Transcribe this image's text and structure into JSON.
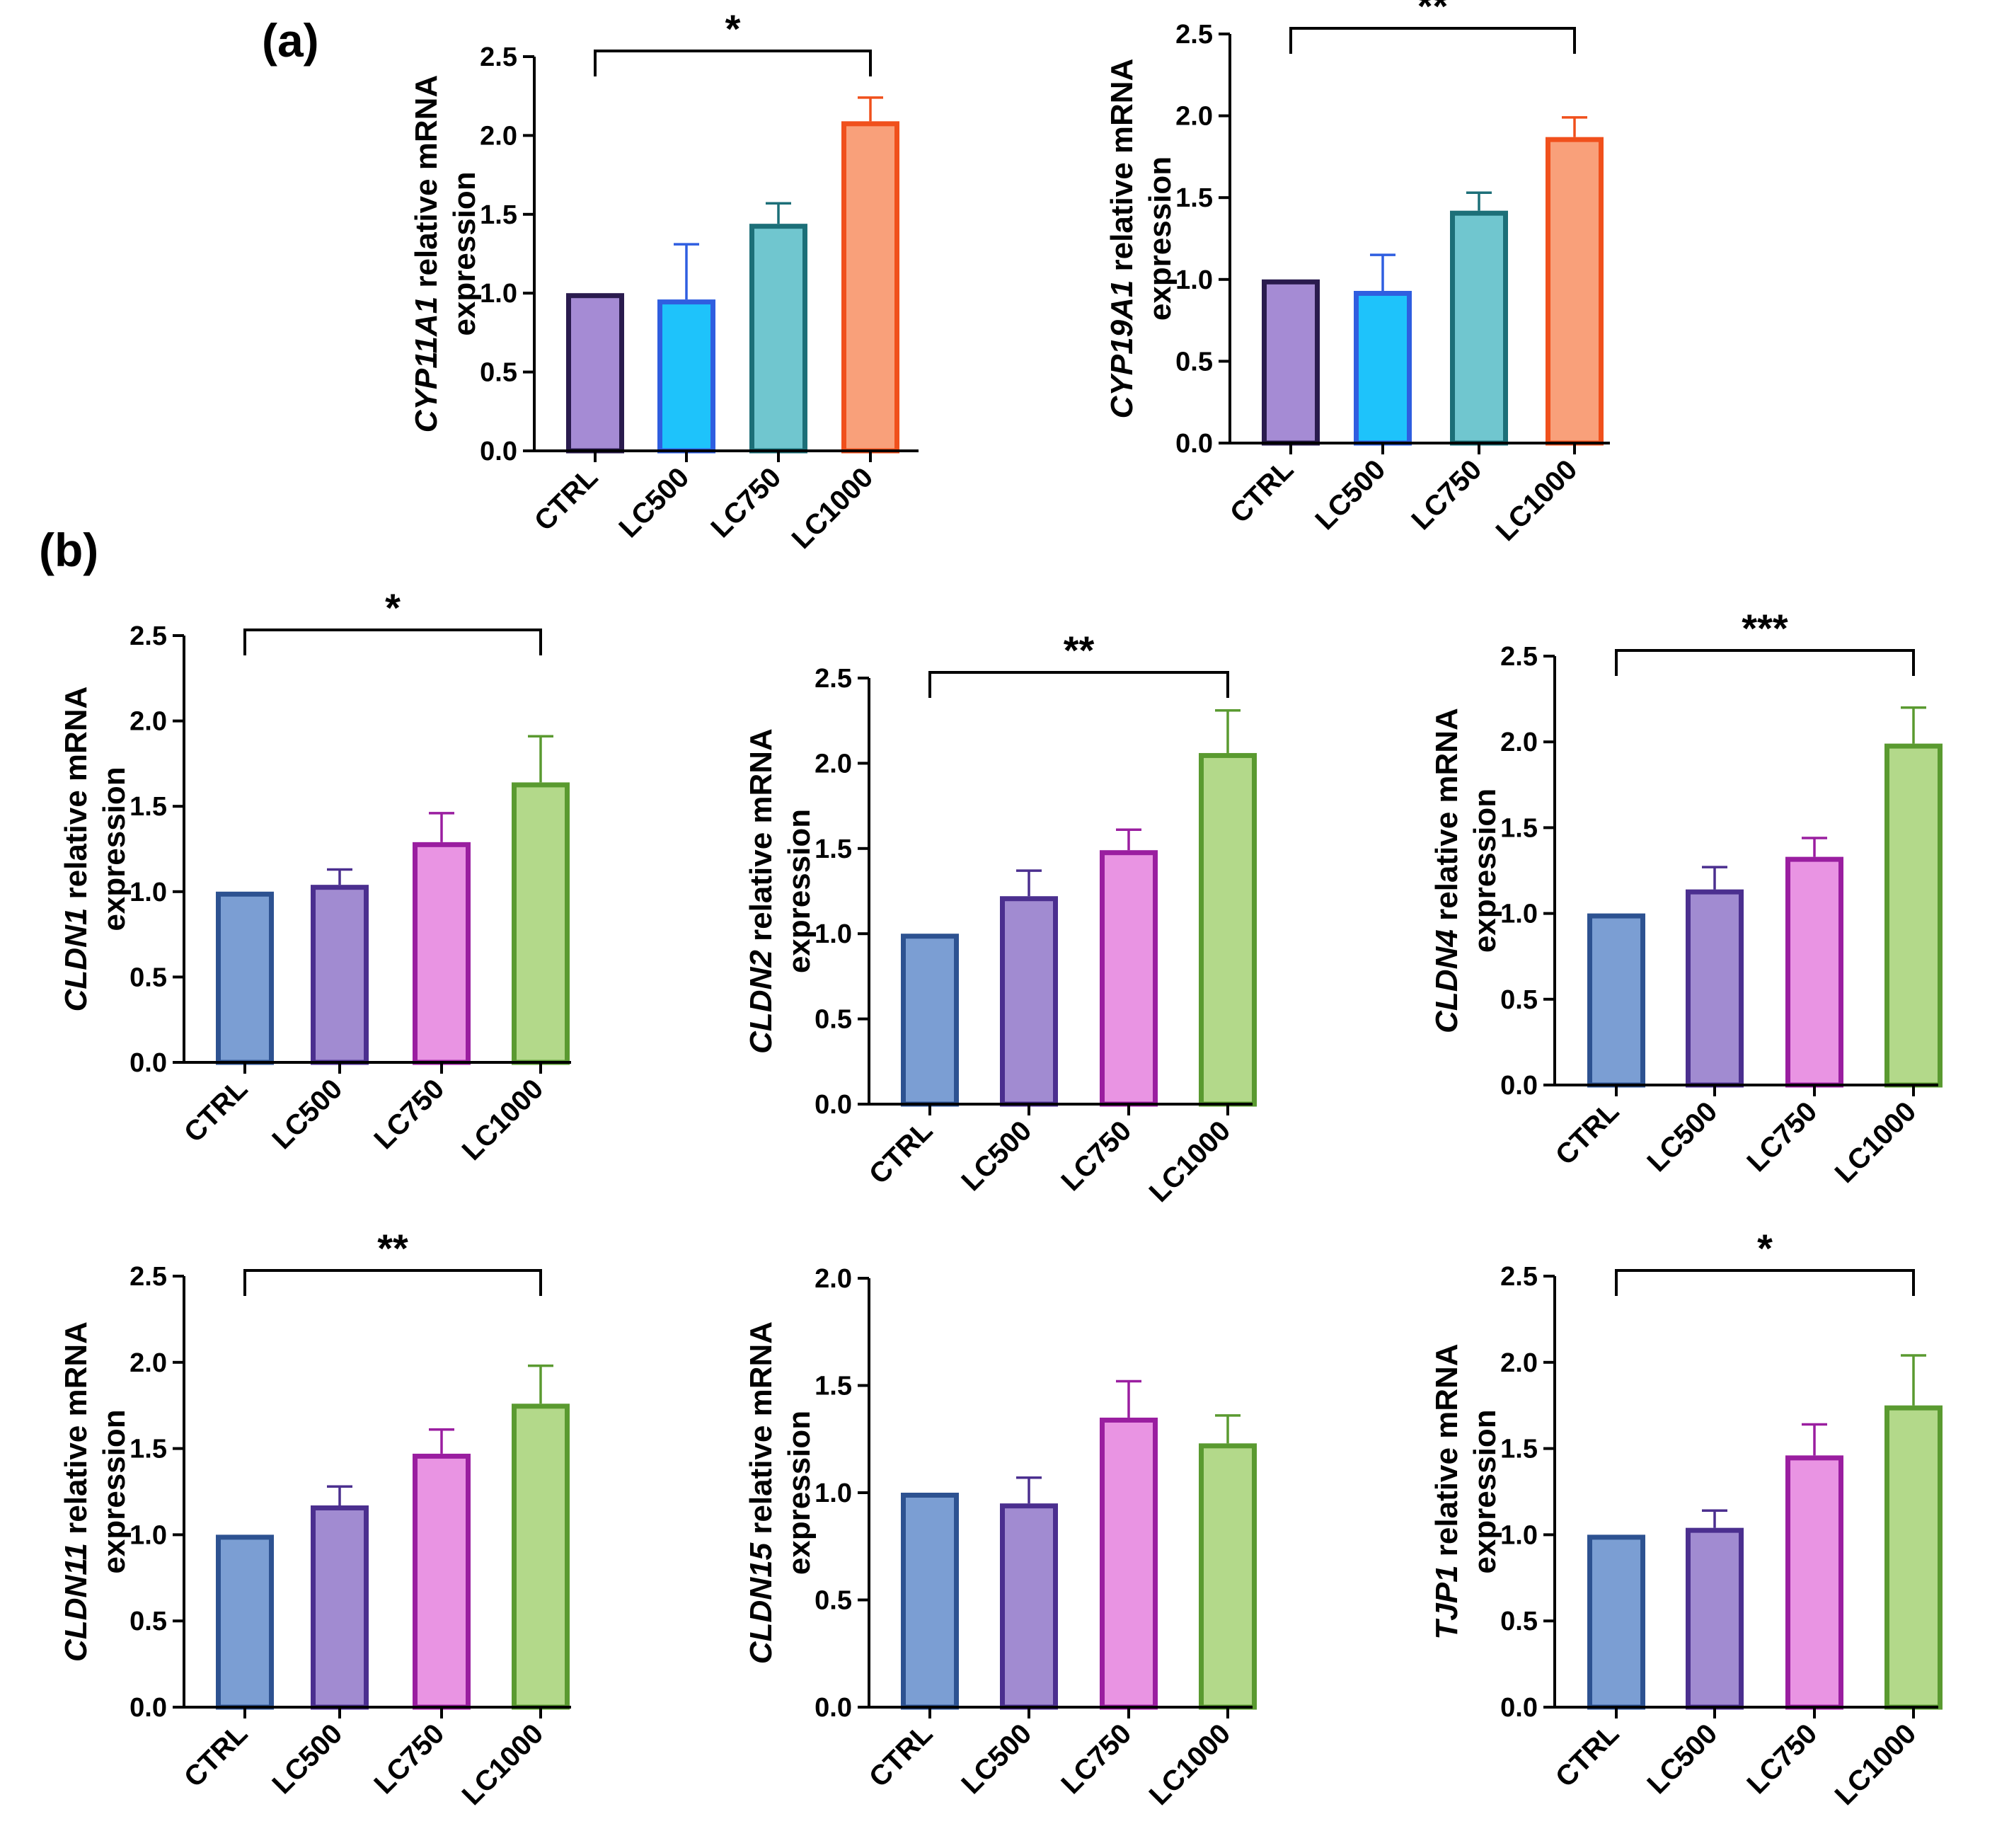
{
  "figure": {
    "panel_labels": [
      "(a)",
      "(b)"
    ]
  },
  "chart_data": [
    {
      "type": "bar",
      "panel": "(a)",
      "gene": "CYP11A1",
      "ylabel_suffix": " relative mRNA",
      "ylabel_line2": "expression",
      "categories": [
        "CTRL",
        "LC500",
        "LC750",
        "LC1000"
      ],
      "values": [
        1.0,
        0.96,
        1.44,
        2.09
      ],
      "errors": [
        0.0,
        0.35,
        0.13,
        0.15
      ],
      "ylim": [
        0,
        2.5
      ],
      "yticks": [
        "0.0",
        "0.5",
        "1.0",
        "1.5",
        "2.0",
        "2.5"
      ],
      "colors": [
        "#a58bd4",
        "#1ec3fb",
        "#70c6cf",
        "#f9a07a"
      ],
      "edge_colors": [
        "#2a1b4e",
        "#2f5ee0",
        "#1c6f78",
        "#f0501c"
      ],
      "significance": {
        "from": 0,
        "to": 3,
        "label": "*"
      }
    },
    {
      "type": "bar",
      "panel": "(a)",
      "gene": "CYP19A1",
      "ylabel_suffix": " relative mRNA",
      "ylabel_line2": "expression",
      "categories": [
        "CTRL",
        "LC500",
        "LC750",
        "LC1000"
      ],
      "values": [
        1.0,
        0.93,
        1.42,
        1.87
      ],
      "errors": [
        0.0,
        0.22,
        0.11,
        0.12
      ],
      "ylim": [
        0,
        2.5
      ],
      "yticks": [
        "0.0",
        "0.5",
        "1.0",
        "1.5",
        "2.0",
        "2.5"
      ],
      "colors": [
        "#a58bd4",
        "#1ec3fb",
        "#70c6cf",
        "#f9a07a"
      ],
      "edge_colors": [
        "#2a1b4e",
        "#2f5ee0",
        "#1c6f78",
        "#f0501c"
      ],
      "significance": {
        "from": 0,
        "to": 3,
        "label": "**"
      }
    },
    {
      "type": "bar",
      "panel": "(b)",
      "gene": "CLDN1",
      "ylabel_suffix": " relative mRNA",
      "ylabel_line2": "expression",
      "categories": [
        "CTRL",
        "LC500",
        "LC750",
        "LC1000"
      ],
      "values": [
        1.0,
        1.04,
        1.29,
        1.64
      ],
      "errors": [
        0.0,
        0.09,
        0.17,
        0.27
      ],
      "ylim": [
        0,
        2.5
      ],
      "yticks": [
        "0.0",
        "0.5",
        "1.0",
        "1.5",
        "2.0",
        "2.5"
      ],
      "colors": [
        "#7b9ed3",
        "#a18bd1",
        "#e994e3",
        "#b3d98a"
      ],
      "edge_colors": [
        "#2d5291",
        "#4b2f8f",
        "#9a1ea0",
        "#5a9a30"
      ],
      "significance": {
        "from": 0,
        "to": 3,
        "label": "*"
      }
    },
    {
      "type": "bar",
      "panel": "(b)",
      "gene": "CLDN2",
      "ylabel_suffix": " relative mRNA",
      "ylabel_line2": "expression",
      "categories": [
        "CTRL",
        "LC500",
        "LC750",
        "LC1000"
      ],
      "values": [
        1.0,
        1.22,
        1.49,
        2.06
      ],
      "errors": [
        0.0,
        0.15,
        0.12,
        0.25
      ],
      "ylim": [
        0,
        2.5
      ],
      "yticks": [
        "0.0",
        "0.5",
        "1.0",
        "1.5",
        "2.0",
        "2.5"
      ],
      "colors": [
        "#7b9ed3",
        "#a18bd1",
        "#e994e3",
        "#b3d98a"
      ],
      "edge_colors": [
        "#2d5291",
        "#4b2f8f",
        "#9a1ea0",
        "#5a9a30"
      ],
      "significance": {
        "from": 0,
        "to": 3,
        "label": "**"
      }
    },
    {
      "type": "bar",
      "panel": "(b)",
      "gene": "CLDN4",
      "ylabel_suffix": " relative mRNA",
      "ylabel_line2": "expression",
      "categories": [
        "CTRL",
        "LC500",
        "LC750",
        "LC1000"
      ],
      "values": [
        1.0,
        1.14,
        1.33,
        1.99
      ],
      "errors": [
        0.0,
        0.13,
        0.11,
        0.21
      ],
      "ylim": [
        0,
        2.5
      ],
      "yticks": [
        "0.0",
        "0.5",
        "1.0",
        "1.5",
        "2.0",
        "2.5"
      ],
      "colors": [
        "#7b9ed3",
        "#a18bd1",
        "#e994e3",
        "#b3d98a"
      ],
      "edge_colors": [
        "#2d5291",
        "#4b2f8f",
        "#9a1ea0",
        "#5a9a30"
      ],
      "significance": {
        "from": 0,
        "to": 3,
        "label": "***"
      }
    },
    {
      "type": "bar",
      "panel": "(b)",
      "gene": "CLDN11",
      "ylabel_suffix": " relative mRNA",
      "ylabel_line2": "expression",
      "categories": [
        "CTRL",
        "LC500",
        "LC750",
        "LC1000"
      ],
      "values": [
        1.0,
        1.17,
        1.47,
        1.76
      ],
      "errors": [
        0.0,
        0.11,
        0.14,
        0.22
      ],
      "ylim": [
        0,
        2.5
      ],
      "yticks": [
        "0.0",
        "0.5",
        "1.0",
        "1.5",
        "2.0",
        "2.5"
      ],
      "colors": [
        "#7b9ed3",
        "#a18bd1",
        "#e994e3",
        "#b3d98a"
      ],
      "edge_colors": [
        "#2d5291",
        "#4b2f8f",
        "#9a1ea0",
        "#5a9a30"
      ],
      "significance": {
        "from": 0,
        "to": 3,
        "label": "**"
      }
    },
    {
      "type": "bar",
      "panel": "(b)",
      "gene": "CLDN15",
      "ylabel_suffix": " relative mRNA",
      "ylabel_line2": "expression",
      "categories": [
        "CTRL",
        "LC500",
        "LC750",
        "LC1000"
      ],
      "values": [
        1.0,
        0.95,
        1.35,
        1.23
      ],
      "errors": [
        0.0,
        0.12,
        0.17,
        0.13
      ],
      "ylim": [
        0,
        2.0
      ],
      "yticks": [
        "0.0",
        "0.5",
        "1.0",
        "1.5",
        "2.0"
      ],
      "colors": [
        "#7b9ed3",
        "#a18bd1",
        "#e994e3",
        "#b3d98a"
      ],
      "edge_colors": [
        "#2d5291",
        "#4b2f8f",
        "#9a1ea0",
        "#5a9a30"
      ],
      "significance": null
    },
    {
      "type": "bar",
      "panel": "(b)",
      "gene": "TJP1",
      "ylabel_suffix": " relative mRNA",
      "ylabel_line2": "expression",
      "categories": [
        "CTRL",
        "LC500",
        "LC750",
        "LC1000"
      ],
      "values": [
        1.0,
        1.04,
        1.46,
        1.75
      ],
      "errors": [
        0.0,
        0.1,
        0.18,
        0.29
      ],
      "ylim": [
        0,
        2.5
      ],
      "yticks": [
        "0.0",
        "0.5",
        "1.0",
        "1.5",
        "2.0",
        "2.5"
      ],
      "colors": [
        "#7b9ed3",
        "#a18bd1",
        "#e994e3",
        "#b3d98a"
      ],
      "edge_colors": [
        "#2d5291",
        "#4b2f8f",
        "#9a1ea0",
        "#5a9a30"
      ],
      "significance": {
        "from": 0,
        "to": 3,
        "label": "*"
      }
    }
  ]
}
